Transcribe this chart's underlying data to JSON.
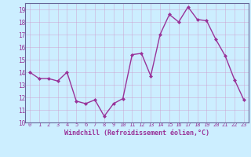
{
  "x": [
    0,
    1,
    2,
    3,
    4,
    5,
    6,
    7,
    8,
    9,
    10,
    11,
    12,
    13,
    14,
    15,
    16,
    17,
    18,
    19,
    20,
    21,
    22,
    23
  ],
  "y": [
    14.0,
    13.5,
    13.5,
    13.3,
    14.0,
    11.7,
    11.5,
    11.8,
    10.5,
    11.5,
    11.9,
    15.4,
    15.5,
    13.7,
    17.0,
    18.6,
    18.0,
    19.2,
    18.2,
    18.1,
    16.6,
    15.3,
    13.4,
    11.8
  ],
  "line_color": "#993399",
  "marker": "D",
  "marker_size": 2.0,
  "line_width": 1.0,
  "xlabel": "Windchill (Refroidissement éolien,°C)",
  "xlim": [
    -0.5,
    23.5
  ],
  "ylim": [
    10,
    19.5
  ],
  "yticks": [
    10,
    11,
    12,
    13,
    14,
    15,
    16,
    17,
    18,
    19
  ],
  "xticks": [
    0,
    1,
    2,
    3,
    4,
    5,
    6,
    7,
    8,
    9,
    10,
    11,
    12,
    13,
    14,
    15,
    16,
    17,
    18,
    19,
    20,
    21,
    22,
    23
  ],
  "bg_color": "#cceeff",
  "grid_color": "#aaddcc",
  "tick_color": "#993399",
  "label_color": "#993399",
  "spine_color": "#666699"
}
